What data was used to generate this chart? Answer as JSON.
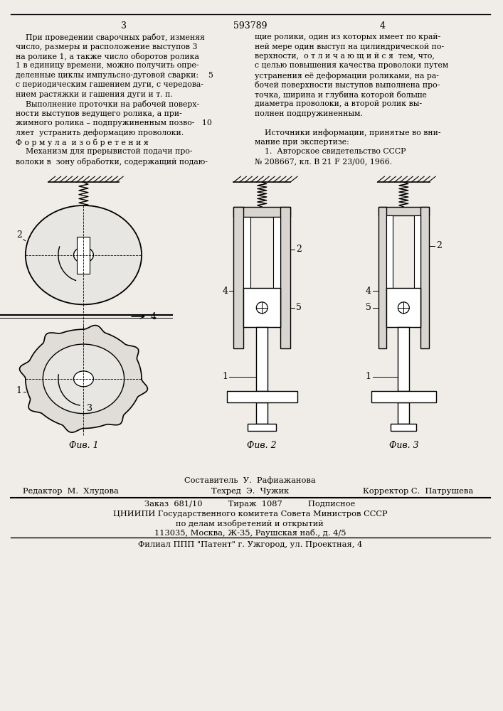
{
  "page_color": "#f0ede8",
  "patent_number": "593789",
  "page_numbers": [
    "3",
    "4"
  ],
  "left_column_text": [
    "    При проведении сварочных работ, изменяя",
    "число, размеры и расположение выступов 3",
    "на ролике 1, а также число оборотов ролика",
    "1 в единицу времени, можно получить опре-",
    "деленные циклы импульсно-дуговой сварки:    5",
    "с периодическим гашением дуги, с чередова-",
    "нием растяжки и гашения дуги и т. п.",
    "    Выполнение проточки на рабочей поверх-",
    "ности выступов ведущего ролика, а при-",
    "жимного ролика – подпружиненным позво-   10",
    "ляет  устранить деформацию проволоки.",
    "Ф о р м у л а  и з о б р е т е н и я",
    "    Механизм для прерывистой подачи про-",
    "волоки в  зону обработки, содержащий подаю-"
  ],
  "right_column_text": [
    "щие ролики, один из которых имеет по край-",
    "ней мере один выступ на цилиндрической по-",
    "верхности,  о т л и ч а ю щ и й с я  тем, что,",
    "с целью повышения качества проволоки путем",
    "устранения её деформации роликами, на ра-",
    "бочей поверхности выступов выполнена про-",
    "точка, ширина и глубина которой больше",
    "диаметра проволоки, а второй ролик вы-",
    "полнен подпружиненным.",
    "",
    "    Источники информации, принятые во вни-",
    "мание при экспертизе:",
    "    1.  Авторское свидетельство СССР",
    "№ 208667, кл. В 21 F 23/00, 1966."
  ],
  "fig_labels": [
    "Фив. 1",
    "Фив. 2",
    "Фив. 3"
  ],
  "footer_line1": "Составитель  У.  Рафиажанова",
  "footer_line2_left": "Редактор  М.  Хлудова",
  "footer_line2_mid": "Техред  Э.  Чужик",
  "footer_line2_right": "Корректор С.  Патрушева",
  "footer_line3": "Заказ  681/10          Тираж  1087          Подписное",
  "footer_line4": "ЦНИИПИ Государственного комитета Совета Министров СССР",
  "footer_line5": "по делам изобретений и открытий",
  "footer_line6": "113035, Москва, Ж-35, Раушская наб., д. 4/5",
  "footer_line7": "Филиал ППП \"Патент\" г. Ужгород, ул. Проектная, 4"
}
